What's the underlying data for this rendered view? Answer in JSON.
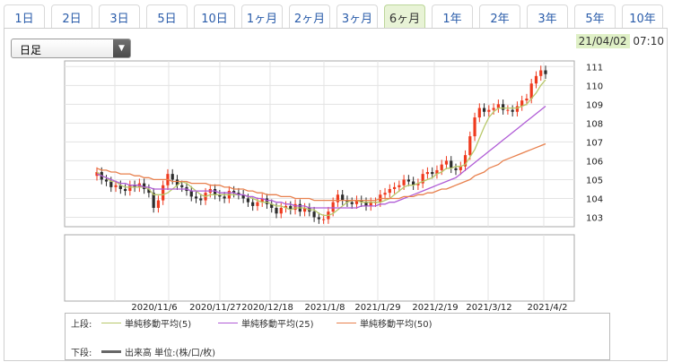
{
  "tabs": [
    "1日",
    "2日",
    "3日",
    "5日",
    "10日",
    "1ヶ月",
    "2ヶ月",
    "3ヶ月",
    "6ヶ月",
    "1年",
    "2年",
    "3年",
    "5年",
    "10年"
  ],
  "active_tab": "6ヶ月",
  "period_select": {
    "value": "日足"
  },
  "timestamp": {
    "date": "21/04/02",
    "time": "07:10"
  },
  "colors": {
    "up": "#ef3a1e",
    "down": "#2c2c2c",
    "ma5": "#b8c86a",
    "ma25": "#b05cd6",
    "ma50": "#e8804d",
    "active_tab": "#e8f3d6"
  },
  "legend": {
    "upper_label": "上段:",
    "lower_label": "下段:",
    "ma5_label": "単純移動平均(5)",
    "ma25_label": "単純移動平均(25)",
    "ma50_label": "単純移動平均(50)",
    "volume_label": "出来高 単位:(株/口/枚)"
  },
  "chart_data": {
    "type": "line",
    "subtype": "candlestick",
    "x_tick_labels": [
      "2020/11/6",
      "2020/11/27",
      "2020/12/18",
      "2021/1/8",
      "2021/1/29",
      "2021/2/19",
      "2021/3/12",
      "2021/4/2"
    ],
    "y_ticks": [
      103,
      104,
      105,
      106,
      107,
      108,
      109,
      110,
      111
    ],
    "ylim": [
      102.5,
      111.3
    ],
    "close": [
      105.4,
      105.0,
      104.9,
      104.6,
      104.7,
      104.5,
      104.4,
      104.7,
      104.6,
      104.8,
      104.5,
      104.3,
      103.5,
      103.9,
      104.7,
      105.3,
      105.0,
      104.7,
      104.6,
      104.4,
      104.1,
      104.0,
      103.9,
      104.3,
      104.5,
      104.2,
      104.1,
      104.0,
      104.4,
      104.3,
      104.2,
      104.0,
      103.8,
      103.6,
      103.8,
      104.0,
      103.7,
      103.5,
      103.2,
      103.5,
      103.6,
      103.4,
      103.7,
      103.3,
      103.5,
      103.3,
      103.0,
      102.9,
      102.9,
      103.3,
      103.8,
      104.2,
      103.9,
      103.8,
      103.7,
      103.9,
      103.8,
      103.6,
      103.8,
      103.8,
      104.2,
      104.3,
      104.5,
      104.6,
      104.7,
      105.0,
      104.9,
      104.7,
      104.8,
      105.3,
      105.4,
      105.3,
      105.5,
      105.8,
      106.0,
      105.6,
      105.5,
      105.7,
      106.3,
      107.3,
      108.3,
      108.8,
      108.6,
      108.7,
      108.8,
      109.0,
      108.7,
      108.7,
      108.6,
      108.9,
      109.2,
      109.3,
      110.1,
      110.5,
      110.8,
      110.6
    ],
    "series": [
      {
        "name": "単純移動平均(5)",
        "values": [
          105.4,
          105.2,
          105.1,
          104.9,
          104.9,
          104.7,
          104.6,
          104.6,
          104.6,
          104.6,
          104.6,
          104.5,
          104.2,
          104.2,
          104.2,
          104.3,
          104.5,
          104.7,
          104.9,
          104.8,
          104.6,
          104.4,
          104.2,
          104.1,
          104.2,
          104.2,
          104.2,
          104.2,
          104.2,
          104.2,
          104.2,
          104.2,
          104.1,
          104.0,
          103.9,
          103.8,
          103.8,
          103.7,
          103.6,
          103.6,
          103.5,
          103.4,
          103.5,
          103.5,
          103.5,
          103.4,
          103.4,
          103.2,
          103.1,
          103.1,
          103.2,
          103.4,
          103.6,
          103.8,
          103.9,
          103.9,
          103.8,
          103.8,
          103.8,
          103.8,
          103.8,
          103.9,
          104.0,
          104.2,
          104.4,
          104.6,
          104.7,
          104.7,
          104.8,
          104.9,
          105.0,
          105.1,
          105.3,
          105.4,
          105.6,
          105.6,
          105.7,
          105.7,
          105.8,
          106.2,
          106.6,
          107.2,
          107.8,
          108.3,
          108.6,
          108.8,
          108.8,
          108.8,
          108.8,
          108.8,
          108.9,
          109.0,
          109.3,
          109.6,
          110.0,
          110.3
        ]
      },
      {
        "name": "単純移動平均(25)",
        "values": [
          105.3,
          105.2,
          105.1,
          105.0,
          104.9,
          104.8,
          104.8,
          104.7,
          104.7,
          104.7,
          104.6,
          104.6,
          104.5,
          104.5,
          104.5,
          104.5,
          104.5,
          104.5,
          104.5,
          104.5,
          104.4,
          104.4,
          104.4,
          104.4,
          104.4,
          104.4,
          104.3,
          104.3,
          104.3,
          104.3,
          104.2,
          104.2,
          104.1,
          104.1,
          104.0,
          104.0,
          103.9,
          103.9,
          103.8,
          103.8,
          103.7,
          103.7,
          103.6,
          103.6,
          103.6,
          103.5,
          103.5,
          103.5,
          103.5,
          103.5,
          103.5,
          103.5,
          103.5,
          103.5,
          103.5,
          103.5,
          103.6,
          103.6,
          103.6,
          103.6,
          103.7,
          103.7,
          103.8,
          103.8,
          103.9,
          104.0,
          104.1,
          104.2,
          104.3,
          104.4,
          104.5,
          104.6,
          104.7,
          104.8,
          104.9,
          105.0,
          105.1,
          105.3,
          105.5,
          105.7,
          105.9,
          106.1,
          106.3,
          106.5,
          106.7,
          106.9,
          107.1,
          107.3,
          107.5,
          107.7,
          107.9,
          108.1,
          108.3,
          108.5,
          108.7,
          108.9
        ]
      },
      {
        "name": "単純移動平均(50)",
        "values": [
          105.6,
          105.5,
          105.5,
          105.4,
          105.4,
          105.3,
          105.3,
          105.3,
          105.2,
          105.2,
          105.1,
          105.1,
          105.0,
          105.0,
          105.0,
          105.0,
          104.9,
          104.9,
          104.9,
          104.9,
          104.8,
          104.8,
          104.8,
          104.8,
          104.7,
          104.7,
          104.7,
          104.6,
          104.6,
          104.5,
          104.5,
          104.5,
          104.4,
          104.4,
          104.3,
          104.3,
          104.2,
          104.2,
          104.2,
          104.1,
          104.1,
          104.1,
          104.0,
          104.0,
          104.0,
          104.0,
          103.9,
          103.9,
          103.9,
          103.9,
          103.9,
          103.9,
          103.9,
          103.9,
          103.9,
          103.9,
          103.9,
          103.9,
          103.9,
          103.9,
          104.0,
          104.0,
          104.0,
          104.0,
          104.0,
          104.1,
          104.1,
          104.1,
          104.2,
          104.2,
          104.3,
          104.3,
          104.4,
          104.5,
          104.5,
          104.6,
          104.7,
          104.8,
          104.9,
          105.0,
          105.2,
          105.3,
          105.4,
          105.6,
          105.7,
          105.8,
          106.0,
          106.1,
          106.2,
          106.3,
          106.4,
          106.5,
          106.6,
          106.7,
          106.8,
          106.9
        ]
      }
    ]
  }
}
